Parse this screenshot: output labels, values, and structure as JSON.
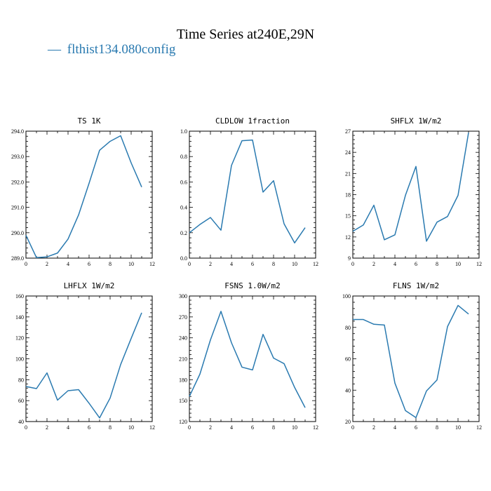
{
  "figure": {
    "title": "Time Series at240E,29N",
    "legend": [
      {
        "marker": "—",
        "label": "flthist134.080config",
        "color": "#2a7ab0"
      }
    ]
  },
  "chart_data": [
    {
      "type": "line",
      "title": "TS   1K",
      "x": [
        0,
        1,
        2,
        3,
        4,
        5,
        6,
        7,
        8,
        9,
        10,
        11
      ],
      "series": [
        {
          "values": [
            289.9,
            289.02,
            289.05,
            289.2,
            289.75,
            290.7,
            291.95,
            293.25,
            293.6,
            293.82,
            292.75,
            291.8
          ],
          "color": "#2a7ab0"
        }
      ],
      "xlim": [
        0,
        12
      ],
      "ylim": [
        289,
        294
      ],
      "xticks": [
        0,
        2,
        4,
        6,
        8,
        10,
        12
      ],
      "yticks": [
        289,
        290,
        291,
        292,
        293,
        294
      ],
      "ytick_labels": [
        "289.0",
        "290.0",
        "291.0",
        "292.0",
        "293.0",
        "294.0"
      ]
    },
    {
      "type": "line",
      "title": "CLDLOW   1fraction",
      "x": [
        0,
        1,
        2,
        3,
        4,
        5,
        6,
        7,
        8,
        9,
        10,
        11
      ],
      "series": [
        {
          "values": [
            0.2,
            0.265,
            0.32,
            0.22,
            0.73,
            0.925,
            0.93,
            0.52,
            0.61,
            0.27,
            0.12,
            0.24
          ],
          "color": "#2a7ab0"
        }
      ],
      "xlim": [
        0,
        12
      ],
      "ylim": [
        0,
        1
      ],
      "xticks": [
        0,
        2,
        4,
        6,
        8,
        10,
        12
      ],
      "yticks": [
        0,
        0.2,
        0.4,
        0.6,
        0.8,
        1.0
      ],
      "ytick_labels": [
        "0.0",
        "0.2",
        "0.4",
        "0.6",
        "0.8",
        "1.0"
      ]
    },
    {
      "type": "line",
      "title": "SHFLX   1W/m2",
      "x": [
        0,
        1,
        2,
        3,
        4,
        5,
        6,
        7,
        8,
        9,
        10,
        11
      ],
      "series": [
        {
          "values": [
            12.8,
            13.7,
            16.5,
            11.6,
            12.3,
            17.9,
            22.0,
            11.4,
            14.1,
            14.9,
            17.9,
            26.8
          ],
          "color": "#2a7ab0"
        }
      ],
      "xlim": [
        0,
        12
      ],
      "ylim": [
        9,
        27
      ],
      "xticks": [
        0,
        2,
        4,
        6,
        8,
        10,
        12
      ],
      "yticks": [
        9,
        12,
        15,
        18,
        21,
        24,
        27
      ],
      "ytick_labels": [
        "9",
        "12",
        "15",
        "18",
        "21",
        "24",
        "27"
      ]
    },
    {
      "type": "line",
      "title": "LHFLX   1W/m2",
      "x": [
        0,
        1,
        2,
        3,
        4,
        5,
        6,
        7,
        8,
        9,
        10,
        11
      ],
      "series": [
        {
          "values": [
            73.5,
            71.5,
            86.5,
            60.5,
            69.5,
            70.5,
            57.5,
            43.5,
            62.5,
            94.5,
            119.5,
            144.0
          ],
          "color": "#2a7ab0"
        }
      ],
      "xlim": [
        0,
        12
      ],
      "ylim": [
        40,
        160
      ],
      "xticks": [
        0,
        2,
        4,
        6,
        8,
        10,
        12
      ],
      "yticks": [
        40,
        60,
        80,
        100,
        120,
        140,
        160
      ],
      "ytick_labels": [
        "40",
        "60",
        "80",
        "100",
        "120",
        "140",
        "160"
      ]
    },
    {
      "type": "line",
      "title": "FSNS   1.0W/m2",
      "x": [
        0,
        1,
        2,
        3,
        4,
        5,
        6,
        7,
        8,
        9,
        10,
        11
      ],
      "series": [
        {
          "values": [
            156,
            188,
            237,
            278,
            233,
            198,
            194,
            245,
            211,
            203,
            169,
            140
          ],
          "color": "#2a7ab0"
        }
      ],
      "xlim": [
        0,
        12
      ],
      "ylim": [
        120,
        300
      ],
      "xticks": [
        0,
        2,
        4,
        6,
        8,
        10,
        12
      ],
      "yticks": [
        120,
        150,
        180,
        210,
        240,
        270,
        300
      ],
      "ytick_labels": [
        "120",
        "150",
        "180",
        "210",
        "240",
        "270",
        "300"
      ]
    },
    {
      "type": "line",
      "title": "FLNS   1W/m2",
      "x": [
        0,
        1,
        2,
        3,
        4,
        5,
        6,
        7,
        8,
        9,
        10,
        11
      ],
      "series": [
        {
          "values": [
            85.0,
            85.0,
            82.0,
            81.5,
            44.5,
            27.0,
            22.5,
            39.5,
            46.5,
            80.5,
            94.0,
            88.5
          ],
          "color": "#2a7ab0"
        }
      ],
      "xlim": [
        0,
        12
      ],
      "ylim": [
        20,
        100
      ],
      "xticks": [
        0,
        2,
        4,
        6,
        8,
        10,
        12
      ],
      "yticks": [
        20,
        40,
        60,
        80,
        100
      ],
      "ytick_labels": [
        "20",
        "40",
        "60",
        "80",
        "100"
      ]
    }
  ]
}
